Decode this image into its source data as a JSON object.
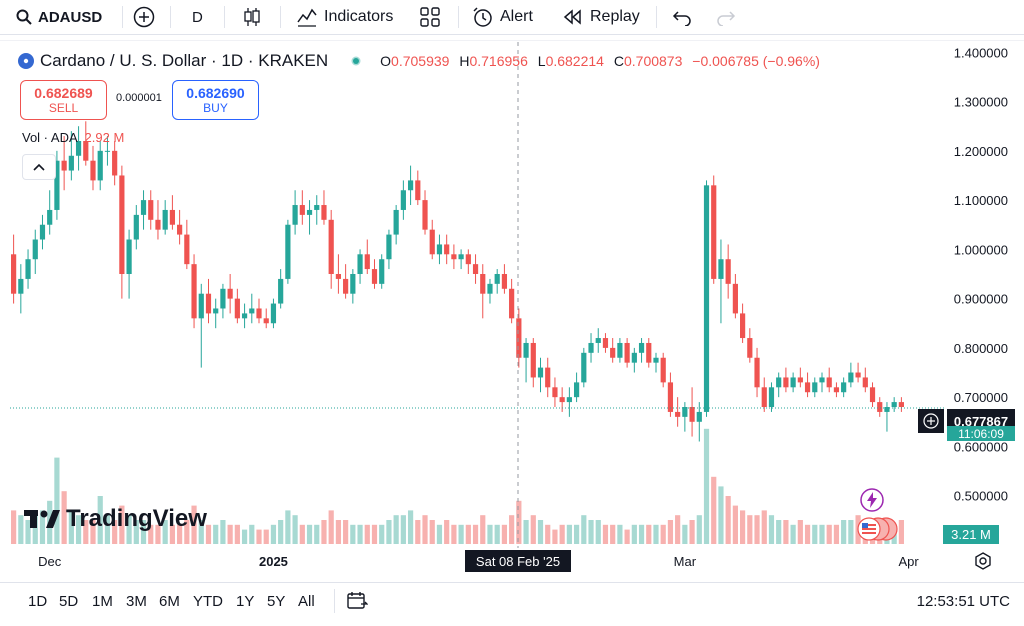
{
  "toolbar": {
    "symbol": "ADAUSD",
    "interval": "D",
    "indicators": "Indicators",
    "alert": "Alert",
    "replay": "Replay"
  },
  "legend": {
    "title": "Cardano / U. S. Dollar · 1D · KRAKEN",
    "open_label": "O",
    "open": "0.705939",
    "high_label": "H",
    "high": "0.716956",
    "low_label": "L",
    "low": "0.682214",
    "close_label": "C",
    "close": "0.700873",
    "change": "−0.006785 (−0.96%)"
  },
  "trade": {
    "sell_price": "0.682689",
    "sell_label": "SELL",
    "spread": "0.000001",
    "buy_price": "0.682690",
    "buy_label": "BUY"
  },
  "volume": {
    "label": "Vol · ADA",
    "value": "2.92 M",
    "last_badge": "3.21 M"
  },
  "price_badge": {
    "price": "0.677867",
    "countdown": "11:06:09"
  },
  "crosshair_date": "Sat 08 Feb '25",
  "ranges": [
    "1D",
    "5D",
    "1M",
    "3M",
    "6M",
    "YTD",
    "1Y",
    "5Y",
    "All"
  ],
  "clock": "12:53:51 UTC",
  "watermark": "TradingView",
  "colors": {
    "up": "#26a69a",
    "down": "#ef5350",
    "up_vol": "#a7d9d2",
    "down_vol": "#f7b1af"
  },
  "chart_data": {
    "type": "candlestick",
    "y_ticks": [
      "1.400000",
      "1.300000",
      "1.200000",
      "1.100000",
      "1.000000",
      "0.900000",
      "0.800000",
      "0.700000",
      "0.600000",
      "0.500000"
    ],
    "ylim": [
      0.475,
      1.425
    ],
    "x_ticks": [
      {
        "label": "Dec",
        "i": 5
      },
      {
        "label": "2025",
        "i": 36
      },
      {
        "label": "Mar",
        "i": 93
      },
      {
        "label": "Apr",
        "i": 124
      }
    ],
    "candles": [
      [
        0.99,
        1.03,
        0.89,
        0.91
      ],
      [
        0.91,
        0.97,
        0.87,
        0.94
      ],
      [
        0.94,
        1.0,
        0.92,
        0.98
      ],
      [
        0.98,
        1.04,
        0.95,
        1.02
      ],
      [
        1.02,
        1.07,
        1.0,
        1.05
      ],
      [
        1.05,
        1.12,
        1.03,
        1.08
      ],
      [
        1.08,
        1.2,
        1.06,
        1.18
      ],
      [
        1.18,
        1.23,
        1.12,
        1.16
      ],
      [
        1.16,
        1.24,
        1.14,
        1.19
      ],
      [
        1.19,
        1.25,
        1.16,
        1.22
      ],
      [
        1.22,
        1.26,
        1.17,
        1.18
      ],
      [
        1.18,
        1.21,
        1.12,
        1.14
      ],
      [
        1.14,
        1.22,
        1.12,
        1.2
      ],
      [
        1.2,
        1.23,
        1.17,
        1.2
      ],
      [
        1.2,
        1.22,
        1.13,
        1.15
      ],
      [
        1.15,
        1.17,
        0.9,
        0.95
      ],
      [
        0.95,
        1.04,
        0.9,
        1.02
      ],
      [
        1.02,
        1.09,
        1.0,
        1.07
      ],
      [
        1.07,
        1.12,
        1.04,
        1.1
      ],
      [
        1.1,
        1.12,
        1.04,
        1.06
      ],
      [
        1.06,
        1.1,
        1.02,
        1.04
      ],
      [
        1.04,
        1.1,
        1.03,
        1.08
      ],
      [
        1.08,
        1.11,
        1.04,
        1.05
      ],
      [
        1.05,
        1.08,
        1.01,
        1.03
      ],
      [
        1.03,
        1.06,
        0.96,
        0.97
      ],
      [
        0.97,
        0.99,
        0.84,
        0.86
      ],
      [
        0.86,
        0.93,
        0.76,
        0.91
      ],
      [
        0.91,
        0.94,
        0.85,
        0.87
      ],
      [
        0.87,
        0.9,
        0.84,
        0.88
      ],
      [
        0.88,
        0.93,
        0.86,
        0.92
      ],
      [
        0.92,
        0.95,
        0.87,
        0.9
      ],
      [
        0.9,
        0.92,
        0.85,
        0.86
      ],
      [
        0.86,
        0.89,
        0.84,
        0.87
      ],
      [
        0.87,
        0.91,
        0.85,
        0.88
      ],
      [
        0.88,
        0.9,
        0.85,
        0.86
      ],
      [
        0.86,
        0.88,
        0.84,
        0.85
      ],
      [
        0.85,
        0.9,
        0.84,
        0.89
      ],
      [
        0.89,
        0.96,
        0.88,
        0.94
      ],
      [
        0.94,
        1.06,
        0.93,
        1.05
      ],
      [
        1.05,
        1.12,
        1.03,
        1.09
      ],
      [
        1.09,
        1.12,
        1.05,
        1.07
      ],
      [
        1.07,
        1.1,
        1.03,
        1.08
      ],
      [
        1.08,
        1.11,
        1.05,
        1.09
      ],
      [
        1.09,
        1.12,
        1.05,
        1.06
      ],
      [
        1.06,
        1.08,
        0.92,
        0.95
      ],
      [
        0.95,
        0.99,
        0.91,
        0.94
      ],
      [
        0.94,
        0.97,
        0.9,
        0.91
      ],
      [
        0.91,
        0.96,
        0.89,
        0.95
      ],
      [
        0.95,
        1.0,
        0.93,
        0.99
      ],
      [
        0.99,
        1.02,
        0.95,
        0.96
      ],
      [
        0.96,
        0.98,
        0.92,
        0.93
      ],
      [
        0.93,
        0.99,
        0.92,
        0.98
      ],
      [
        0.98,
        1.04,
        0.96,
        1.03
      ],
      [
        1.03,
        1.09,
        1.01,
        1.08
      ],
      [
        1.08,
        1.14,
        1.06,
        1.12
      ],
      [
        1.12,
        1.17,
        1.09,
        1.14
      ],
      [
        1.14,
        1.16,
        1.09,
        1.1
      ],
      [
        1.1,
        1.12,
        1.03,
        1.04
      ],
      [
        1.04,
        1.06,
        0.98,
        0.99
      ],
      [
        0.99,
        1.03,
        0.97,
        1.01
      ],
      [
        1.01,
        1.03,
        0.97,
        0.99
      ],
      [
        0.99,
        1.01,
        0.96,
        0.98
      ],
      [
        0.98,
        1.0,
        0.96,
        0.99
      ],
      [
        0.99,
        1.0,
        0.95,
        0.97
      ],
      [
        0.97,
        0.99,
        0.93,
        0.95
      ],
      [
        0.95,
        0.97,
        0.86,
        0.91
      ],
      [
        0.91,
        0.94,
        0.89,
        0.93
      ],
      [
        0.93,
        0.96,
        0.91,
        0.95
      ],
      [
        0.95,
        0.97,
        0.91,
        0.92
      ],
      [
        0.92,
        0.94,
        0.85,
        0.86
      ],
      [
        0.86,
        0.88,
        0.76,
        0.78
      ],
      [
        0.78,
        0.82,
        0.73,
        0.81
      ],
      [
        0.81,
        0.82,
        0.72,
        0.74
      ],
      [
        0.74,
        0.78,
        0.71,
        0.76
      ],
      [
        0.76,
        0.78,
        0.7,
        0.72
      ],
      [
        0.72,
        0.74,
        0.68,
        0.7
      ],
      [
        0.7,
        0.72,
        0.67,
        0.69
      ],
      [
        0.69,
        0.72,
        0.66,
        0.7
      ],
      [
        0.7,
        0.75,
        0.69,
        0.73
      ],
      [
        0.73,
        0.8,
        0.72,
        0.79
      ],
      [
        0.79,
        0.83,
        0.77,
        0.81
      ],
      [
        0.81,
        0.84,
        0.79,
        0.82
      ],
      [
        0.82,
        0.83,
        0.79,
        0.8
      ],
      [
        0.8,
        0.82,
        0.77,
        0.78
      ],
      [
        0.78,
        0.82,
        0.77,
        0.81
      ],
      [
        0.81,
        0.82,
        0.76,
        0.77
      ],
      [
        0.77,
        0.8,
        0.75,
        0.79
      ],
      [
        0.79,
        0.82,
        0.77,
        0.81
      ],
      [
        0.81,
        0.82,
        0.76,
        0.77
      ],
      [
        0.77,
        0.79,
        0.75,
        0.78
      ],
      [
        0.78,
        0.79,
        0.72,
        0.73
      ],
      [
        0.73,
        0.75,
        0.66,
        0.67
      ],
      [
        0.67,
        0.7,
        0.64,
        0.66
      ],
      [
        0.66,
        0.69,
        0.63,
        0.68
      ],
      [
        0.68,
        0.72,
        0.62,
        0.65
      ],
      [
        0.65,
        0.69,
        0.61,
        0.67
      ],
      [
        0.67,
        1.14,
        0.66,
        1.13
      ],
      [
        1.13,
        1.15,
        0.93,
        0.94
      ],
      [
        0.94,
        1.02,
        0.85,
        0.98
      ],
      [
        0.98,
        1.01,
        0.9,
        0.93
      ],
      [
        0.93,
        0.95,
        0.86,
        0.87
      ],
      [
        0.87,
        0.89,
        0.81,
        0.82
      ],
      [
        0.82,
        0.84,
        0.77,
        0.78
      ],
      [
        0.78,
        0.8,
        0.7,
        0.72
      ],
      [
        0.72,
        0.74,
        0.67,
        0.68
      ],
      [
        0.68,
        0.73,
        0.67,
        0.72
      ],
      [
        0.72,
        0.75,
        0.7,
        0.74
      ],
      [
        0.74,
        0.76,
        0.71,
        0.72
      ],
      [
        0.72,
        0.75,
        0.71,
        0.74
      ],
      [
        0.74,
        0.76,
        0.72,
        0.73
      ],
      [
        0.73,
        0.75,
        0.7,
        0.71
      ],
      [
        0.71,
        0.74,
        0.7,
        0.73
      ],
      [
        0.73,
        0.75,
        0.71,
        0.74
      ],
      [
        0.74,
        0.76,
        0.71,
        0.72
      ],
      [
        0.72,
        0.73,
        0.7,
        0.71
      ],
      [
        0.71,
        0.74,
        0.7,
        0.73
      ],
      [
        0.73,
        0.77,
        0.72,
        0.75
      ],
      [
        0.75,
        0.77,
        0.73,
        0.74
      ],
      [
        0.74,
        0.76,
        0.71,
        0.72
      ],
      [
        0.72,
        0.73,
        0.68,
        0.69
      ],
      [
        0.69,
        0.7,
        0.66,
        0.67
      ],
      [
        0.67,
        0.69,
        0.63,
        0.68
      ],
      [
        0.68,
        0.7,
        0.67,
        0.69
      ],
      [
        0.69,
        0.7,
        0.67,
        0.68
      ]
    ],
    "volumes": [
      0.07,
      0.06,
      0.05,
      0.06,
      0.07,
      0.09,
      0.18,
      0.11,
      0.07,
      0.06,
      0.05,
      0.05,
      0.1,
      0.06,
      0.05,
      0.08,
      0.06,
      0.05,
      0.05,
      0.04,
      0.04,
      0.05,
      0.04,
      0.04,
      0.05,
      0.08,
      0.05,
      0.04,
      0.04,
      0.05,
      0.04,
      0.04,
      0.03,
      0.04,
      0.03,
      0.03,
      0.04,
      0.05,
      0.07,
      0.06,
      0.04,
      0.04,
      0.04,
      0.05,
      0.07,
      0.05,
      0.05,
      0.04,
      0.04,
      0.04,
      0.04,
      0.04,
      0.05,
      0.06,
      0.06,
      0.07,
      0.05,
      0.06,
      0.05,
      0.04,
      0.05,
      0.04,
      0.04,
      0.04,
      0.04,
      0.06,
      0.04,
      0.04,
      0.04,
      0.06,
      0.09,
      0.05,
      0.06,
      0.05,
      0.04,
      0.03,
      0.04,
      0.04,
      0.04,
      0.06,
      0.05,
      0.05,
      0.04,
      0.04,
      0.04,
      0.03,
      0.04,
      0.04,
      0.04,
      0.04,
      0.04,
      0.05,
      0.06,
      0.04,
      0.05,
      0.06,
      0.24,
      0.14,
      0.12,
      0.1,
      0.08,
      0.07,
      0.06,
      0.06,
      0.07,
      0.06,
      0.05,
      0.05,
      0.04,
      0.05,
      0.04,
      0.04,
      0.04,
      0.04,
      0.04,
      0.05,
      0.05,
      0.06,
      0.05,
      0.05,
      0.04,
      0.04,
      0.04,
      0.05
    ],
    "last_price": 0.677867
  }
}
